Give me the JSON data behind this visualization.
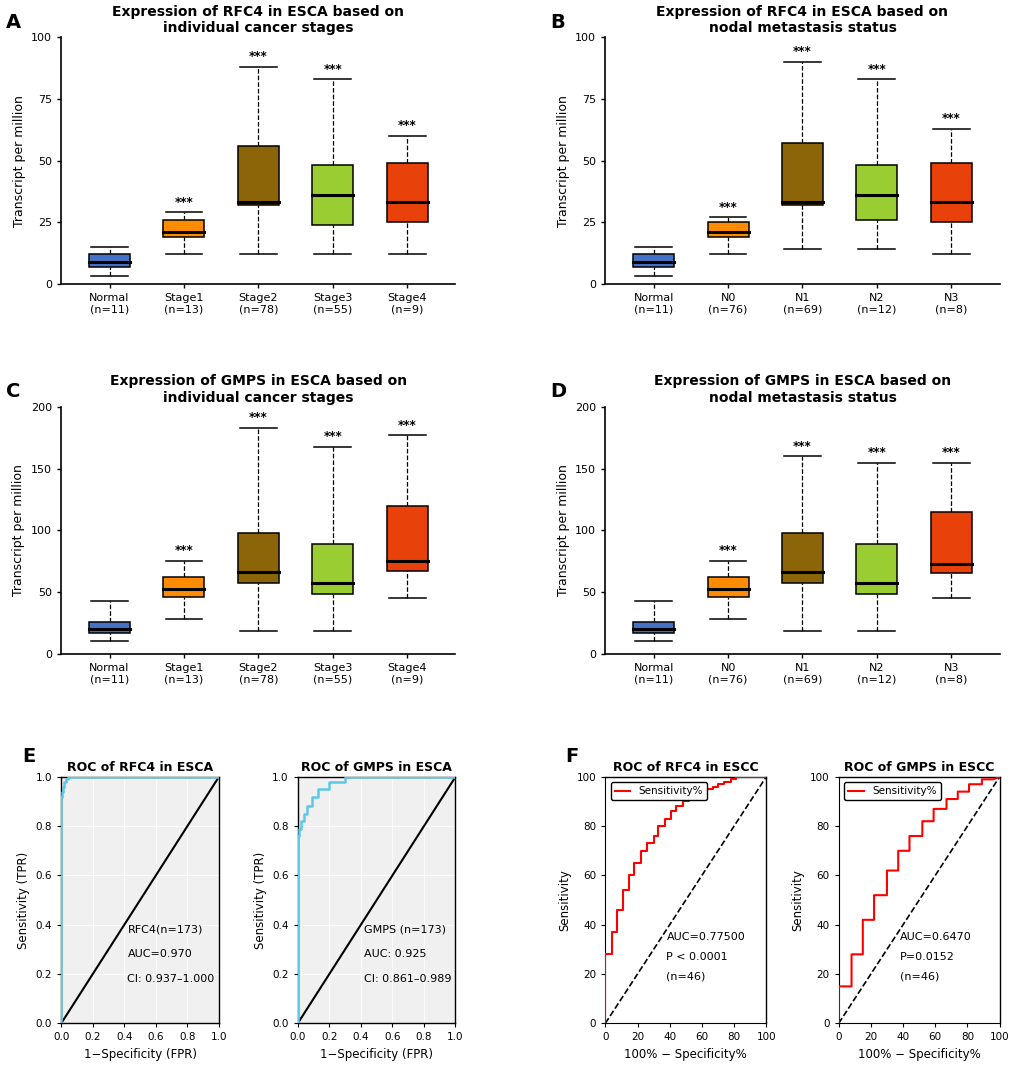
{
  "panel_A": {
    "title": "Expression of RFC4 in ESCA based on\nindividual cancer stages",
    "ylabel": "Transcript per million",
    "ylim": [
      0,
      100
    ],
    "yticks": [
      0,
      25,
      50,
      75,
      100
    ],
    "groups": [
      "Normal\n(n=11)",
      "Stage1\n(n=13)",
      "Stage2\n(n=78)",
      "Stage3\n(n=55)",
      "Stage4\n(n=9)"
    ],
    "colors": [
      "#4472C4",
      "#FF8C00",
      "#8B6508",
      "#9ACD32",
      "#E8420A"
    ],
    "boxes": [
      {
        "q1": 7,
        "median": 9,
        "q3": 12,
        "whislo": 3,
        "whishi": 15
      },
      {
        "q1": 19,
        "median": 21,
        "q3": 26,
        "whislo": 12,
        "whishi": 29
      },
      {
        "q1": 32,
        "median": 33,
        "q3": 56,
        "whislo": 12,
        "whishi": 88
      },
      {
        "q1": 24,
        "median": 36,
        "q3": 48,
        "whislo": 12,
        "whishi": 83
      },
      {
        "q1": 25,
        "median": 33,
        "q3": 49,
        "whislo": 12,
        "whishi": 60
      }
    ],
    "sig": [
      "",
      "***",
      "***",
      "***",
      "***"
    ]
  },
  "panel_B": {
    "title": "Expression of RFC4 in ESCA based on\nnodal metastasis status",
    "ylabel": "Transcript per million",
    "ylim": [
      0,
      100
    ],
    "yticks": [
      0,
      25,
      50,
      75,
      100
    ],
    "groups": [
      "Normal\n(n=11)",
      "N0\n(n=76)",
      "N1\n(n=69)",
      "N2\n(n=12)",
      "N3\n(n=8)"
    ],
    "colors": [
      "#4472C4",
      "#FF8C00",
      "#8B6508",
      "#9ACD32",
      "#E8420A"
    ],
    "boxes": [
      {
        "q1": 7,
        "median": 9,
        "q3": 12,
        "whislo": 3,
        "whishi": 15
      },
      {
        "q1": 19,
        "median": 21,
        "q3": 25,
        "whislo": 12,
        "whishi": 27
      },
      {
        "q1": 32,
        "median": 33,
        "q3": 57,
        "whislo": 14,
        "whishi": 90
      },
      {
        "q1": 26,
        "median": 36,
        "q3": 48,
        "whislo": 14,
        "whishi": 83
      },
      {
        "q1": 25,
        "median": 33,
        "q3": 49,
        "whislo": 12,
        "whishi": 63
      }
    ],
    "sig": [
      "",
      "***",
      "***",
      "***",
      "***"
    ]
  },
  "panel_C": {
    "title": "Expression of GMPS in ESCA based on\nindividual cancer stages",
    "ylabel": "Transcript per million",
    "ylim": [
      0,
      200
    ],
    "yticks": [
      0,
      50,
      100,
      150,
      200
    ],
    "groups": [
      "Normal\n(n=11)",
      "Stage1\n(n=13)",
      "Stage2\n(n=78)",
      "Stage3\n(n=55)",
      "Stage4\n(n=9)"
    ],
    "colors": [
      "#4472C4",
      "#FF8C00",
      "#8B6508",
      "#9ACD32",
      "#E8420A"
    ],
    "boxes": [
      {
        "q1": 17,
        "median": 20,
        "q3": 26,
        "whislo": 10,
        "whishi": 43
      },
      {
        "q1": 46,
        "median": 52,
        "q3": 62,
        "whislo": 28,
        "whishi": 75
      },
      {
        "q1": 57,
        "median": 66,
        "q3": 98,
        "whislo": 18,
        "whishi": 183
      },
      {
        "q1": 48,
        "median": 57,
        "q3": 89,
        "whislo": 18,
        "whishi": 168
      },
      {
        "q1": 67,
        "median": 75,
        "q3": 120,
        "whislo": 45,
        "whishi": 177
      }
    ],
    "sig": [
      "",
      "***",
      "***",
      "***",
      "***"
    ]
  },
  "panel_D": {
    "title": "Expression of GMPS in ESCA based on\nnodal metastasis status",
    "ylabel": "Transcript per million",
    "ylim": [
      0,
      200
    ],
    "yticks": [
      0,
      50,
      100,
      150,
      200
    ],
    "groups": [
      "Normal\n(n=11)",
      "N0\n(n=76)",
      "N1\n(n=69)",
      "N2\n(n=12)",
      "N3\n(n=8)"
    ],
    "colors": [
      "#4472C4",
      "#FF8C00",
      "#8B6508",
      "#9ACD32",
      "#E8420A"
    ],
    "boxes": [
      {
        "q1": 17,
        "median": 20,
        "q3": 26,
        "whislo": 10,
        "whishi": 43
      },
      {
        "q1": 46,
        "median": 52,
        "q3": 62,
        "whislo": 28,
        "whishi": 75
      },
      {
        "q1": 57,
        "median": 66,
        "q3": 98,
        "whislo": 18,
        "whishi": 160
      },
      {
        "q1": 48,
        "median": 57,
        "q3": 89,
        "whislo": 18,
        "whishi": 155
      },
      {
        "q1": 65,
        "median": 73,
        "q3": 115,
        "whislo": 45,
        "whishi": 155
      }
    ],
    "sig": [
      "",
      "***",
      "***",
      "***",
      "***"
    ]
  },
  "panel_E_RFC4": {
    "title": "ROC of RFC4 in ESCA",
    "xlabel": "1−Specificity (FPR)",
    "ylabel": "Sensitivity (TPR)",
    "annotation_lines": [
      "RFC4(n=173)",
      "AUC=0.970",
      "CI: 0.937–1.000"
    ],
    "color": "#5BC8E8",
    "roc_x": [
      0.0,
      0.0,
      0.0,
      0.005,
      0.005,
      0.01,
      0.01,
      0.015,
      0.015,
      0.02,
      0.02,
      0.03,
      0.03,
      0.04,
      0.04,
      0.06,
      0.06,
      0.07,
      0.07,
      0.09,
      0.09,
      0.11,
      0.11,
      0.13,
      0.13,
      0.16,
      0.16,
      0.2,
      0.2,
      1.0
    ],
    "roc_y": [
      0.0,
      0.84,
      0.92,
      0.92,
      0.94,
      0.94,
      0.96,
      0.96,
      0.97,
      0.97,
      0.98,
      0.98,
      0.99,
      0.99,
      1.0,
      1.0,
      1.0,
      1.0,
      1.0,
      1.0,
      1.0,
      1.0,
      1.0,
      1.0,
      1.0,
      1.0,
      1.0,
      1.0,
      1.0,
      1.0
    ]
  },
  "panel_E_GMPS": {
    "title": "ROC of GMPS in ESCA",
    "xlabel": "1−Specificity (FPR)",
    "ylabel": "Sensitivity (TPR)",
    "annotation_lines": [
      "GMPS (n=173)",
      "AUC: 0.925",
      "CI: 0.861–0.989"
    ],
    "color": "#5BC8E8",
    "roc_x": [
      0.0,
      0.0,
      0.01,
      0.01,
      0.02,
      0.02,
      0.04,
      0.04,
      0.06,
      0.06,
      0.09,
      0.09,
      0.13,
      0.13,
      0.2,
      0.2,
      0.3,
      0.3,
      1.0
    ],
    "roc_y": [
      0.0,
      0.76,
      0.76,
      0.79,
      0.79,
      0.82,
      0.82,
      0.85,
      0.85,
      0.88,
      0.88,
      0.92,
      0.92,
      0.95,
      0.95,
      0.98,
      0.98,
      1.0,
      1.0
    ]
  },
  "panel_F_RFC4": {
    "title": "ROC of RFC4 in ESCC",
    "xlabel": "100% − Specificity%",
    "ylabel": "Sensitivity",
    "annotation_lines": [
      "AUC=0.77500",
      "P < 0.0001",
      "(n=46)"
    ],
    "color": "#FF0000",
    "legend": "Sensitivity%",
    "roc_x": [
      0,
      0,
      4,
      4,
      7,
      7,
      11,
      11,
      15,
      15,
      18,
      18,
      22,
      22,
      26,
      26,
      30,
      30,
      33,
      33,
      37,
      37,
      41,
      41,
      44,
      44,
      48,
      48,
      52,
      52,
      56,
      56,
      59,
      59,
      63,
      63,
      67,
      67,
      70,
      70,
      74,
      74,
      78,
      78,
      81,
      81,
      85,
      85,
      89,
      89,
      93,
      93,
      96,
      100
    ],
    "roc_y": [
      0,
      28,
      28,
      37,
      37,
      46,
      46,
      54,
      54,
      60,
      60,
      65,
      65,
      70,
      70,
      73,
      73,
      76,
      76,
      80,
      80,
      83,
      83,
      86,
      86,
      88,
      88,
      90,
      90,
      91,
      91,
      93,
      93,
      94,
      94,
      95,
      95,
      96,
      96,
      97,
      97,
      98,
      98,
      99,
      99,
      100,
      100,
      100,
      100,
      100,
      100,
      100,
      100,
      100
    ]
  },
  "panel_F_GMPS": {
    "title": "ROC of GMPS in ESCC",
    "xlabel": "100% − Specificity%",
    "ylabel": "Sensitivity",
    "annotation_lines": [
      "AUC=0.6470",
      "P=0.0152",
      "(n=46)"
    ],
    "color": "#FF0000",
    "legend": "Sensitivity%",
    "roc_x": [
      0,
      0,
      8,
      8,
      15,
      15,
      22,
      22,
      30,
      30,
      37,
      37,
      44,
      44,
      52,
      52,
      59,
      59,
      67,
      67,
      74,
      74,
      81,
      81,
      89,
      89,
      96,
      100
    ],
    "roc_y": [
      0,
      15,
      15,
      28,
      28,
      42,
      42,
      52,
      52,
      62,
      62,
      70,
      70,
      76,
      76,
      82,
      82,
      87,
      87,
      91,
      91,
      94,
      94,
      97,
      97,
      99,
      99,
      100
    ]
  }
}
